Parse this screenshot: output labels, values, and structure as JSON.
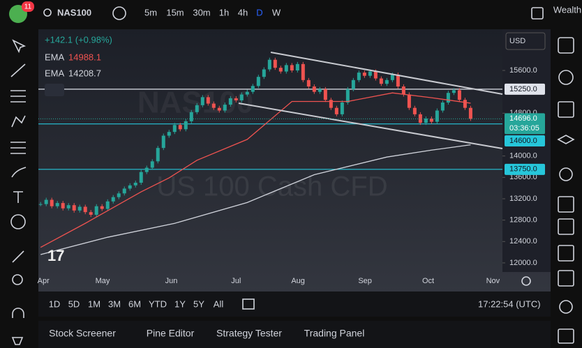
{
  "header": {
    "badge": "11",
    "symbol": "NAS100",
    "intervals": [
      "5m",
      "15m",
      "30m",
      "1h",
      "4h",
      "D",
      "W"
    ],
    "account": "Wealth"
  },
  "legend": {
    "change": "+142.1 (+0.98%)",
    "indicators": [
      {
        "name": "EMA",
        "value": "14988.1",
        "color": "#ef5350"
      },
      {
        "name": "EMA",
        "value": "14208.7",
        "color": "#d1d4dc"
      }
    ]
  },
  "watermark": {
    "symbol": "NAS100",
    "description": "US 100 Cash CFD"
  },
  "chart": {
    "currency": "USD",
    "ylim": [
      11830,
      16370
    ],
    "xlim": [
      -0.4,
      82.7
    ],
    "yticks": [
      {
        "value": 12000,
        "label": "12000.0"
      },
      {
        "value": 12400,
        "label": "12400.0"
      },
      {
        "value": 12800,
        "label": "12800.0"
      },
      {
        "value": 13200,
        "label": "13200.0"
      },
      {
        "value": 13600,
        "label": "13600.0"
      },
      {
        "value": 14000,
        "label": "14000.0"
      },
      {
        "value": 14800,
        "label": "14800.0"
      },
      {
        "value": 15600,
        "label": "15600.0"
      }
    ],
    "xticks": [
      {
        "value": 0.5,
        "label": "Apr"
      },
      {
        "value": 11.1,
        "label": "May"
      },
      {
        "value": 23.4,
        "label": "Jun"
      },
      {
        "value": 35,
        "label": "Jul"
      },
      {
        "value": 46.1,
        "label": "Aug"
      },
      {
        "value": 58.1,
        "label": "Sep"
      },
      {
        "value": 69.4,
        "label": "Oct"
      },
      {
        "value": 81,
        "label": "Nov"
      }
    ],
    "closes": [
      13100,
      13180,
      13060,
      13120,
      13020,
      13080,
      12980,
      13050,
      12950,
      12900,
      13060,
      13010,
      13150,
      13230,
      13300,
      13390,
      13450,
      13500,
      13700,
      13780,
      13900,
      14150,
      14380,
      14450,
      14580,
      14500,
      14650,
      14820,
      14950,
      15100,
      14980,
      14900,
      14850,
      14960,
      15080,
      15040,
      15150,
      15200,
      15310,
      15480,
      15620,
      15800,
      15650,
      15580,
      15700,
      15600,
      15720,
      15420,
      15300,
      15200,
      15250,
      15050,
      14900,
      14780,
      15000,
      15250,
      15420,
      15560,
      15500,
      15580,
      15450,
      15350,
      15420,
      15520,
      15300,
      15150,
      14900,
      14780,
      14620,
      14700,
      14640,
      14850,
      15000,
      15180,
      15230,
      15050,
      14900,
      14696
    ],
    "up_color": "#26a69a",
    "down_color": "#ef5350",
    "ema": [
      {
        "color": "#ef5350",
        "points": [
          [
            0,
            12290
          ],
          [
            8,
            12740
          ],
          [
            18,
            13330
          ],
          [
            23,
            13590
          ],
          [
            28,
            13920
          ],
          [
            37,
            14310
          ],
          [
            45,
            15020
          ],
          [
            55,
            15020
          ],
          [
            63,
            15180
          ],
          [
            70,
            15090
          ],
          [
            77,
            14988
          ]
        ]
      },
      {
        "color": "#d1d4dc",
        "points": [
          [
            0,
            12156
          ],
          [
            12,
            12480
          ],
          [
            24,
            12740
          ],
          [
            37,
            13130
          ],
          [
            49,
            13650
          ],
          [
            62,
            13980
          ],
          [
            70,
            14110
          ],
          [
            77,
            14208.7
          ]
        ]
      }
    ],
    "levels": [
      {
        "value": 15250,
        "label": "15250.0",
        "color": "#e0e3eb"
      },
      {
        "value": 14600,
        "label": "14600.0",
        "color": "#26c6da"
      },
      {
        "value": 13750,
        "label": "13750.0",
        "color": "#26c6da"
      }
    ],
    "last_price": {
      "value": 14696,
      "label": "14696.0",
      "countdown": "03:36:05",
      "color": "#26a69a"
    }
  },
  "footer": {
    "ranges": [
      "1D",
      "5D",
      "1M",
      "3M",
      "6M",
      "YTD",
      "1Y",
      "5Y",
      "All"
    ],
    "clock": "17:22:54 (UTC)",
    "tabs": [
      "Stock Screener",
      "Pine Editor",
      "Strategy Tester",
      "Trading Panel"
    ]
  }
}
